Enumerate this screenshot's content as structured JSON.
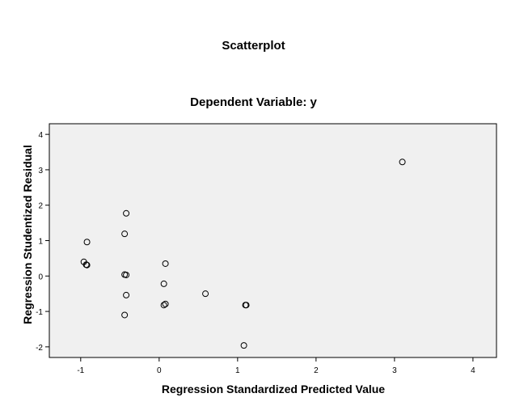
{
  "chart_data": {
    "type": "scatter",
    "title": "Scatterplot",
    "subtitle": "Dependent Variable: y",
    "xlabel": "Regression Standardized Predicted Value",
    "ylabel": "Regression Studentized Residual",
    "xlim": [
      -1.4,
      4.3
    ],
    "ylim": [
      -2.3,
      4.3
    ],
    "xticks": [
      -1,
      0,
      1,
      2,
      3,
      4
    ],
    "yticks": [
      -2,
      -1,
      0,
      1,
      2,
      3,
      4
    ],
    "grid": false,
    "background": "#f0f0f0",
    "marker_color": "#000000",
    "points": [
      {
        "x": 3.1,
        "y": 3.22
      },
      {
        "x": -0.42,
        "y": 1.77
      },
      {
        "x": -0.44,
        "y": 1.19
      },
      {
        "x": -0.92,
        "y": 0.96
      },
      {
        "x": -0.96,
        "y": 0.4
      },
      {
        "x": -0.93,
        "y": 0.32
      },
      {
        "x": -0.92,
        "y": 0.31
      },
      {
        "x": 0.08,
        "y": 0.35
      },
      {
        "x": -0.44,
        "y": 0.04
      },
      {
        "x": -0.42,
        "y": 0.03
      },
      {
        "x": 0.06,
        "y": -0.22
      },
      {
        "x": 0.59,
        "y": -0.5
      },
      {
        "x": -0.42,
        "y": -0.54
      },
      {
        "x": 0.06,
        "y": -0.82
      },
      {
        "x": 0.08,
        "y": -0.79
      },
      {
        "x": 1.1,
        "y": -0.82
      },
      {
        "x": 1.11,
        "y": -0.82
      },
      {
        "x": -0.44,
        "y": -1.1
      },
      {
        "x": 1.08,
        "y": -1.96
      }
    ]
  }
}
